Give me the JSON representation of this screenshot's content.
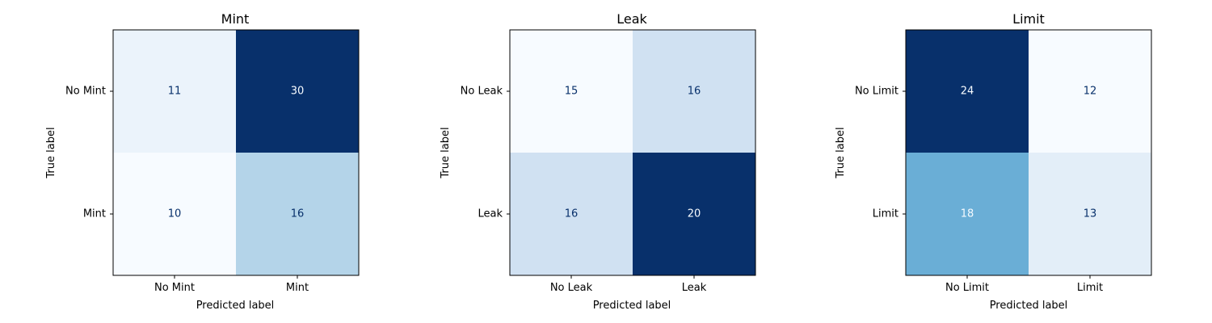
{
  "chart_data": [
    {
      "type": "heatmap",
      "title": "Mint",
      "xlabel": "Predicted label",
      "ylabel": "True label",
      "x_ticks": [
        "No Mint",
        "Mint"
      ],
      "y_ticks": [
        "No Mint",
        "Mint"
      ],
      "values": [
        [
          11,
          30
        ],
        [
          10,
          16
        ]
      ],
      "colormap": "Blues",
      "colors": [
        [
          "#ebf3fb",
          "#08306b"
        ],
        [
          "#f7fbff",
          "#b4d4e9"
        ]
      ],
      "text_colors": [
        [
          "#08306b",
          "#f7fbff"
        ],
        [
          "#08306b",
          "#08306b"
        ]
      ]
    },
    {
      "type": "heatmap",
      "title": "Leak",
      "xlabel": "Predicted label",
      "ylabel": "True label",
      "x_ticks": [
        "No Leak",
        "Leak"
      ],
      "y_ticks": [
        "No Leak",
        "Leak"
      ],
      "values": [
        [
          15,
          16
        ],
        [
          16,
          20
        ]
      ],
      "colormap": "Blues",
      "colors": [
        [
          "#f7fbff",
          "#d0e1f2"
        ],
        [
          "#d0e1f2",
          "#08306b"
        ]
      ],
      "text_colors": [
        [
          "#08306b",
          "#08306b"
        ],
        [
          "#08306b",
          "#f7fbff"
        ]
      ]
    },
    {
      "type": "heatmap",
      "title": "Limit",
      "xlabel": "Predicted label",
      "ylabel": "True label",
      "x_ticks": [
        "No Limit",
        "Limit"
      ],
      "y_ticks": [
        "No Limit",
        "Limit"
      ],
      "values": [
        [
          24,
          12
        ],
        [
          18,
          13
        ]
      ],
      "colormap": "Blues",
      "colors": [
        [
          "#08306b",
          "#f7fbff"
        ],
        [
          "#6aaed6",
          "#e3eef8"
        ]
      ],
      "text_colors": [
        [
          "#f7fbff",
          "#08306b"
        ],
        [
          "#f7fbff",
          "#08306b"
        ]
      ]
    }
  ]
}
